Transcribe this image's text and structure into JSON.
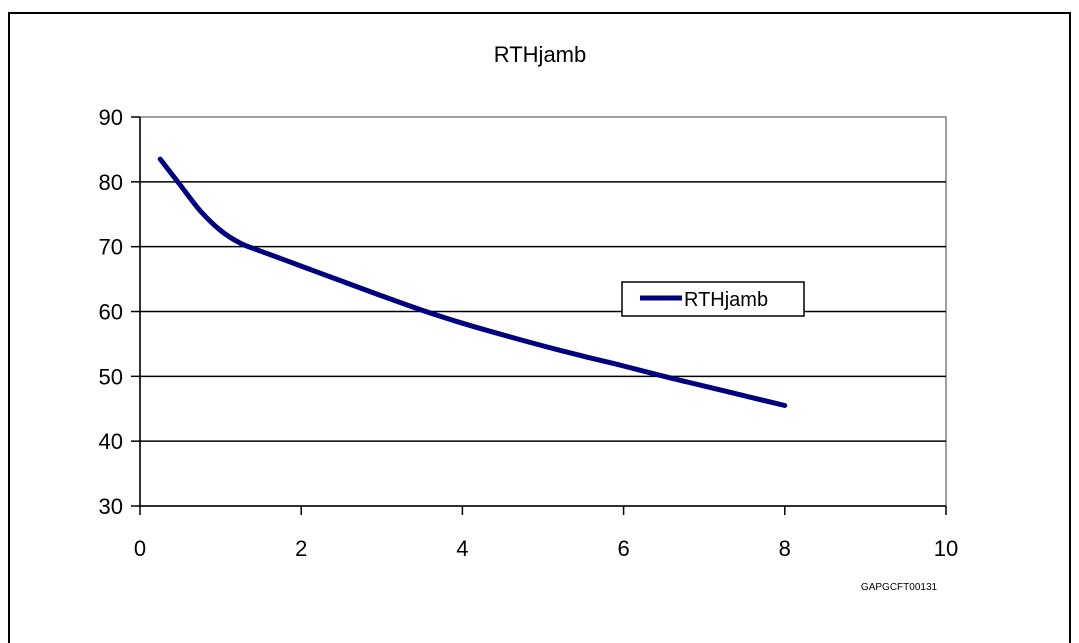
{
  "chart_data": {
    "type": "line",
    "title": "RTHjamb",
    "xlabel": "",
    "ylabel": "",
    "xlim": [
      0,
      10
    ],
    "ylim": [
      30,
      90
    ],
    "xticks": [
      0,
      2,
      4,
      6,
      8,
      10
    ],
    "yticks": [
      30,
      40,
      50,
      60,
      70,
      80,
      90
    ],
    "grid": "horizontal",
    "legend_position": "right",
    "series": [
      {
        "name": "RTHjamb",
        "color": "#00007f",
        "x": [
          0.25,
          0.5,
          0.75,
          1.0,
          1.25,
          1.5,
          2.0,
          2.5,
          3.0,
          3.5,
          4.0,
          4.5,
          5.0,
          5.5,
          6.0,
          6.5,
          7.0,
          7.5,
          8.0
        ],
        "y": [
          83.5,
          79.5,
          75.5,
          72.5,
          70.5,
          69.3,
          67.0,
          64.7,
          62.4,
          60.2,
          58.2,
          56.4,
          54.7,
          53.1,
          51.6,
          50.0,
          48.5,
          47.0,
          45.5
        ]
      }
    ],
    "footnote": "GAPGCFT00131"
  }
}
